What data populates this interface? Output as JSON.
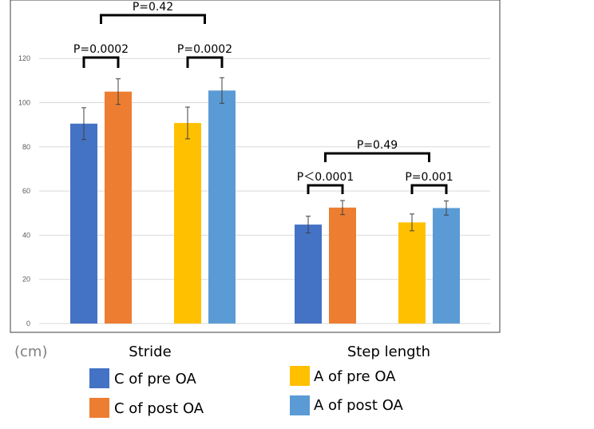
{
  "chart_data": {
    "type": "bar",
    "ylabel": "(cm)",
    "ylim": [
      0,
      130
    ],
    "yticks": [
      0,
      20,
      40,
      60,
      80,
      100,
      120
    ],
    "grid": true,
    "categories": [
      "Stride",
      "Step length"
    ],
    "series": [
      {
        "name": "C of pre OA",
        "color": "#4472C4",
        "values": [
          90.5,
          44.8
        ],
        "errors": [
          7.2,
          3.8
        ]
      },
      {
        "name": "C of post OA",
        "color": "#ED7D31",
        "values": [
          105.0,
          52.5
        ],
        "errors": [
          5.8,
          3.2
        ]
      },
      {
        "name": "A of pre OA",
        "color": "#FFC000",
        "values": [
          90.8,
          45.8
        ],
        "errors": [
          7.2,
          3.8
        ]
      },
      {
        "name": "A of post OA",
        "color": "#5B9BD5",
        "values": [
          105.5,
          52.3
        ],
        "errors": [
          5.8,
          3.2
        ]
      }
    ],
    "annotations": [
      {
        "id": "s1",
        "text": "P=0.0002",
        "category": 0,
        "from_series": 0,
        "to_series": 1
      },
      {
        "id": "s2",
        "text": "P=0.0002",
        "category": 0,
        "from_series": 2,
        "to_series": 3
      },
      {
        "id": "s3",
        "text": "P=0.42",
        "category": 0,
        "from_series": 0.5,
        "to_series": 2.5
      },
      {
        "id": "l1",
        "text": "P＜0.0001",
        "category": 1,
        "from_series": 0,
        "to_series": 1
      },
      {
        "id": "l2",
        "text": "P=0.001",
        "category": 1,
        "from_series": 2,
        "to_series": 3
      },
      {
        "id": "l3",
        "text": "P=0.49",
        "category": 1,
        "from_series": 0.5,
        "to_series": 2.5
      }
    ],
    "legend_position": "bottom"
  }
}
